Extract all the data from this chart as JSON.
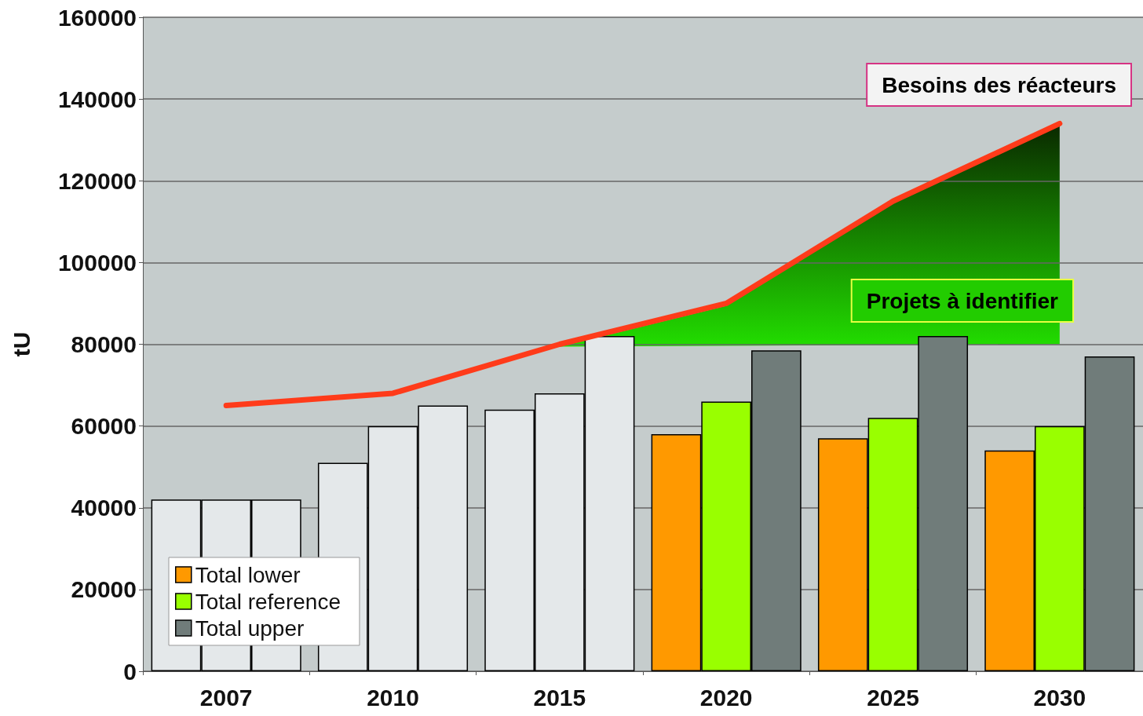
{
  "chart_data": {
    "type": "bar",
    "ylabel": "tU",
    "categories": [
      "2007",
      "2010",
      "2015",
      "2020",
      "2025",
      "2030"
    ],
    "ylim": [
      0,
      160000
    ],
    "yticks": [
      0,
      20000,
      40000,
      60000,
      80000,
      100000,
      120000,
      140000,
      160000
    ],
    "grid": "y",
    "legend": "bottom left",
    "annotations": [
      "Besoins des réacteurs",
      "Projets à identifier"
    ],
    "series": [
      {
        "name": "Total lower",
        "color": "#ff9900",
        "colors": [
          "#e4e8ea",
          "#e4e8ea",
          "#e4e8ea",
          "#ff9900",
          "#ff9900",
          "#ff9900"
        ],
        "values": [
          42000,
          51000,
          64000,
          58000,
          57000,
          54000
        ]
      },
      {
        "name": "Total reference",
        "color": "#99ff00",
        "colors": [
          "#e4e8ea",
          "#e4e8ea",
          "#e4e8ea",
          "#99ff00",
          "#99ff00",
          "#99ff00"
        ],
        "values": [
          42000,
          60000,
          68000,
          66000,
          62000,
          60000
        ]
      },
      {
        "name": "Total upper",
        "color": "#707c7a",
        "colors": [
          "#e4e8ea",
          "#e4e8ea",
          "#e4e8ea",
          "#707c7a",
          "#707c7a",
          "#707c7a"
        ],
        "values": [
          42000,
          65000,
          82000,
          78500,
          82000,
          77000
        ]
      },
      {
        "type": "line",
        "color": "#ff3b1a",
        "values": [
          65000,
          68000,
          80000,
          90000,
          115000,
          134000
        ]
      }
    ]
  }
}
